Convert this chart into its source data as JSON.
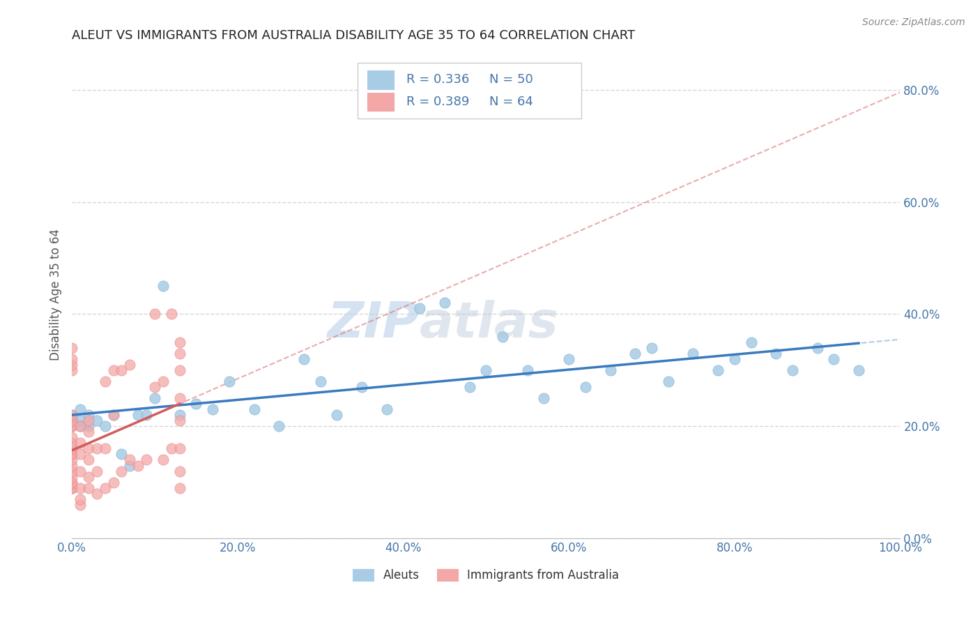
{
  "title": "ALEUT VS IMMIGRANTS FROM AUSTRALIA DISABILITY AGE 35 TO 64 CORRELATION CHART",
  "source": "Source: ZipAtlas.com",
  "xlabel": "",
  "ylabel": "Disability Age 35 to 64",
  "legend_aleuts": "Aleuts",
  "legend_immigrants": "Immigrants from Australia",
  "r_aleuts": 0.336,
  "n_aleuts": 50,
  "r_immigrants": 0.389,
  "n_immigrants": 64,
  "xlim": [
    0.0,
    1.0
  ],
  "ylim": [
    0.0,
    0.87
  ],
  "xticks": [
    0.0,
    0.2,
    0.4,
    0.6,
    0.8,
    1.0
  ],
  "yticks": [
    0.0,
    0.2,
    0.4,
    0.6,
    0.8
  ],
  "xticklabels": [
    "0.0%",
    "20.0%",
    "40.0%",
    "60.0%",
    "80.0%",
    "100.0%"
  ],
  "yticklabels": [
    "0.0%",
    "20.0%",
    "40.0%",
    "60.0%",
    "80.0%"
  ],
  "color_aleuts": "#a8cce4",
  "color_immigrants": "#f4a7a7",
  "color_line_aleuts": "#3a7abf",
  "color_line_immigrants": "#d45b5b",
  "background_color": "#ffffff",
  "grid_color": "#cccccc",
  "aleuts_x": [
    0.0,
    0.0,
    0.0,
    0.01,
    0.01,
    0.01,
    0.02,
    0.02,
    0.03,
    0.04,
    0.05,
    0.06,
    0.07,
    0.08,
    0.09,
    0.1,
    0.11,
    0.13,
    0.15,
    0.17,
    0.19,
    0.22,
    0.25,
    0.28,
    0.3,
    0.32,
    0.35,
    0.38,
    0.42,
    0.45,
    0.48,
    0.5,
    0.52,
    0.55,
    0.57,
    0.6,
    0.62,
    0.65,
    0.68,
    0.7,
    0.72,
    0.75,
    0.78,
    0.8,
    0.82,
    0.85,
    0.87,
    0.9,
    0.92,
    0.95
  ],
  "aleuts_y": [
    0.21,
    0.2,
    0.22,
    0.21,
    0.23,
    0.2,
    0.2,
    0.22,
    0.21,
    0.2,
    0.22,
    0.15,
    0.13,
    0.22,
    0.22,
    0.25,
    0.45,
    0.22,
    0.24,
    0.23,
    0.28,
    0.23,
    0.2,
    0.32,
    0.28,
    0.22,
    0.27,
    0.23,
    0.41,
    0.42,
    0.27,
    0.3,
    0.36,
    0.3,
    0.25,
    0.32,
    0.27,
    0.3,
    0.33,
    0.34,
    0.28,
    0.33,
    0.3,
    0.32,
    0.35,
    0.33,
    0.3,
    0.34,
    0.32,
    0.3
  ],
  "immigrants_x": [
    0.0,
    0.0,
    0.0,
    0.0,
    0.0,
    0.0,
    0.0,
    0.0,
    0.0,
    0.0,
    0.0,
    0.0,
    0.0,
    0.0,
    0.0,
    0.0,
    0.0,
    0.0,
    0.0,
    0.0,
    0.0,
    0.0,
    0.01,
    0.01,
    0.01,
    0.01,
    0.01,
    0.01,
    0.01,
    0.02,
    0.02,
    0.02,
    0.02,
    0.02,
    0.02,
    0.03,
    0.03,
    0.03,
    0.04,
    0.04,
    0.04,
    0.05,
    0.05,
    0.05,
    0.06,
    0.06,
    0.07,
    0.07,
    0.08,
    0.09,
    0.1,
    0.1,
    0.11,
    0.11,
    0.12,
    0.12,
    0.13,
    0.13,
    0.13,
    0.13,
    0.13,
    0.13,
    0.13,
    0.13
  ],
  "immigrants_y": [
    0.09,
    0.09,
    0.09,
    0.1,
    0.1,
    0.11,
    0.12,
    0.13,
    0.14,
    0.15,
    0.15,
    0.16,
    0.17,
    0.18,
    0.2,
    0.2,
    0.21,
    0.22,
    0.3,
    0.31,
    0.32,
    0.34,
    0.06,
    0.07,
    0.09,
    0.12,
    0.15,
    0.17,
    0.2,
    0.09,
    0.11,
    0.14,
    0.16,
    0.19,
    0.21,
    0.08,
    0.12,
    0.16,
    0.09,
    0.16,
    0.28,
    0.1,
    0.22,
    0.3,
    0.12,
    0.3,
    0.14,
    0.31,
    0.13,
    0.14,
    0.27,
    0.4,
    0.14,
    0.28,
    0.16,
    0.4,
    0.09,
    0.12,
    0.16,
    0.21,
    0.25,
    0.3,
    0.33,
    0.35
  ]
}
